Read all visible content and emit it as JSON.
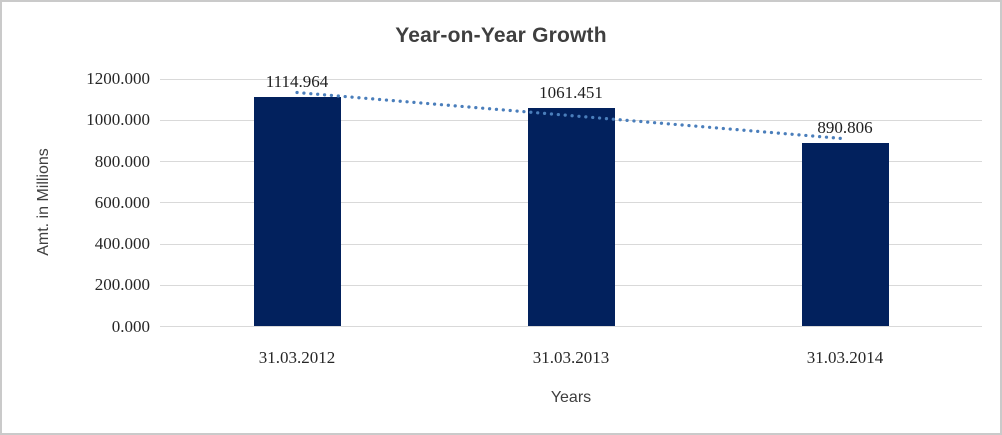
{
  "chart_data": {
    "type": "bar",
    "title": "Year-on-Year Growth",
    "xlabel": "Years",
    "ylabel": "Amt. in Millions",
    "categories": [
      "31.03.2012",
      "31.03.2013",
      "31.03.2014"
    ],
    "values": [
      1114.964,
      1061.451,
      890.806
    ],
    "data_labels": [
      "1114.964",
      "1061.451",
      "890.806"
    ],
    "ytick_labels": [
      "1200.000",
      "1000.000",
      "800.000",
      "600.000",
      "400.000",
      "200.000",
      "0.000"
    ],
    "ylim": [
      0,
      1200
    ],
    "ytick_step": 200,
    "grid": "horizontal",
    "legend": "none",
    "trendline": {
      "style": "dotted",
      "type": "linear",
      "start_value": 1134.5,
      "end_value": 910.3
    },
    "colors": {
      "bar": "#02215d",
      "trendline": "#4a7ebb",
      "gridline": "#d9d9d9",
      "border": "#cacaca",
      "title_text": "#3f3f3f",
      "tick_text": "#262626",
      "background": "#ffffff"
    }
  }
}
